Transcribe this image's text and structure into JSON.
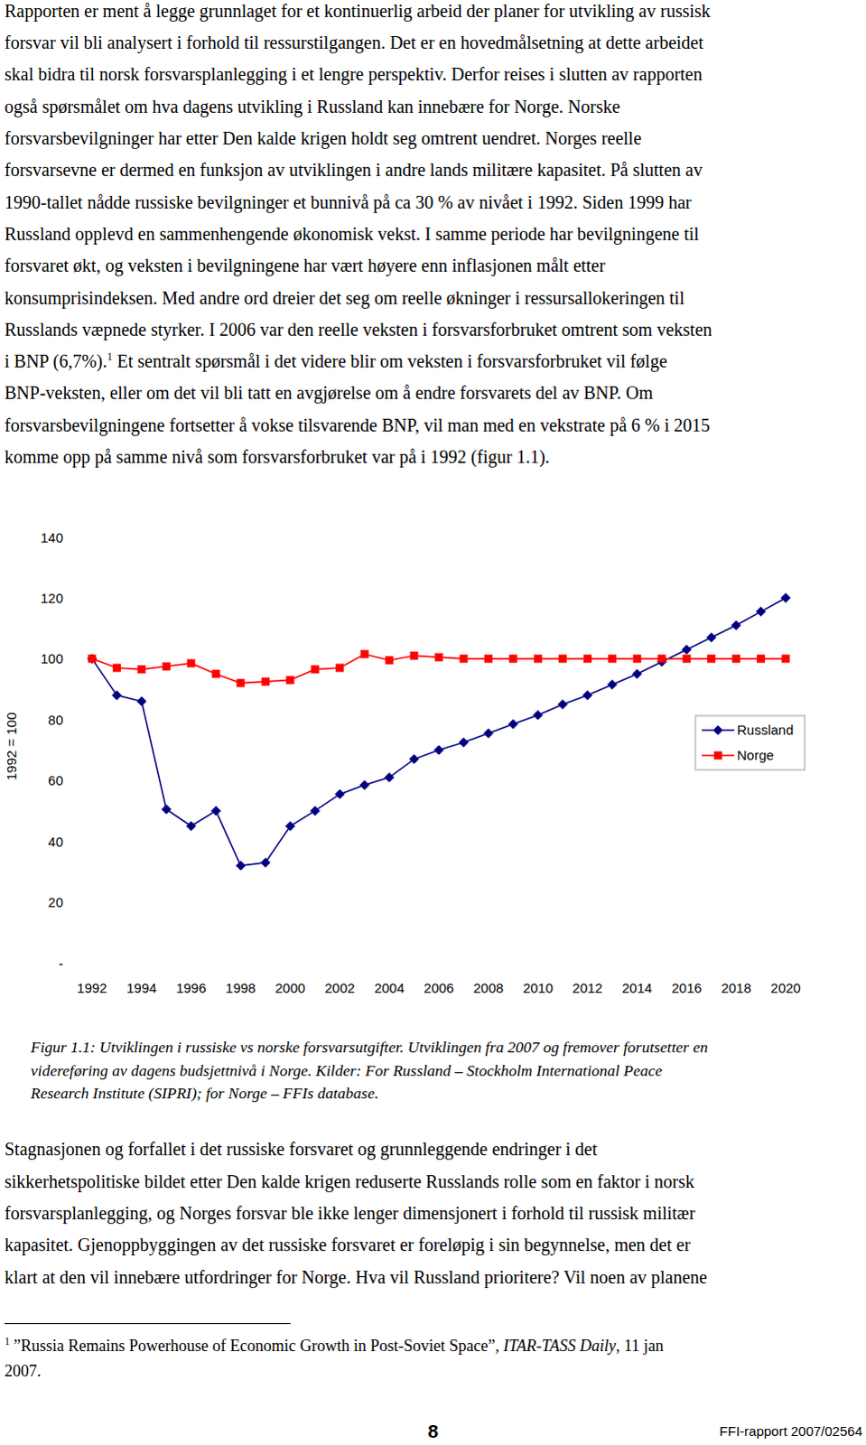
{
  "document": {
    "paragraphs": [
      {
        "lines": [
          "Rapporten er ment å legge grunnlaget for et kontinuerlig arbeid der planer for utvikling av russisk",
          "forsvar vil bli analysert i forhold til ressurstilgangen. Det er en hovedmålsetning at dette arbeidet",
          "skal bidra til norsk forsvarsplanlegging i et lengre perspektiv. Derfor reises i slutten av rapporten",
          "også spørsmålet om hva dagens utvikling i Russland kan innebære for Norge. Norske",
          "forsvarsbevilgninger har etter Den kalde krigen holdt seg omtrent uendret. Norges reelle",
          "forsvarsevne er dermed en funksjon av utviklingen i andre lands militære kapasitet. På slutten av",
          "1990-tallet nådde russiske bevilgninger et bunnivå på ca 30 % av nivået i 1992. Siden 1999 har",
          "Russland opplevd en sammenhengende økonomisk vekst. I samme periode har bevilgningene til",
          "forsvaret økt, og veksten i bevilgningene har vært høyere enn inflasjonen målt etter",
          "konsumprisindeksen. Med andre ord dreier det seg om reelle økninger i ressursallokeringen til",
          "Russlands væpnede styrker. I 2006 var den reelle veksten i forsvarsforbruket omtrent som veksten",
          {
            "text": "i BNP (6,7%).",
            "footnote_ref": "1",
            "text_after": " Et sentralt spørsmål i det videre blir om veksten i forsvarsforbruket vil følge"
          },
          "BNP-veksten, eller om det vil bli tatt en avgjørelse om å endre forsvarets del av BNP. Om",
          "forsvarsbevilgningene fortsetter å vokse tilsvarende BNP, vil man med en vekstrate på 6 % i 2015",
          "komme opp på samme nivå som forsvarsforbruket var på i 1992 (figur 1.1)."
        ]
      },
      {
        "lines": [
          "Stagnasjonen og forfallet i det russiske forsvaret og grunnleggende endringer i det",
          "sikkerhetspolitiske bildet etter Den kalde krigen reduserte Russlands rolle som en faktor i norsk",
          "forsvarsplanlegging, og Norges forsvar ble ikke lenger dimensjonert i forhold til russisk militær",
          "kapasitet. Gjenoppbyggingen av det russiske forsvaret er foreløpig i sin begynnelse, men det er",
          "klart at den vil innebære utfordringer for Norge. Hva vil Russland prioritere? Vil noen av planene"
        ]
      }
    ],
    "figure_caption": {
      "lines": [
        "Figur 1.1: Utviklingen i russiske vs norske forsvarsutgifter. Utviklingen fra 2007 og fremover forutsetter en",
        "videreføring av dagens budsjettnivå i Norge. Kilder: For Russland – Stockholm International Peace",
        "Research Institute (SIPRI); for Norge – FFIs database."
      ]
    },
    "footnote": {
      "marker": "1",
      "lines": [
        [
          "”Russia Remains Powerhouse of Economic Growth in Post-Soviet Space”, ",
          "ITAR-TASS Daily",
          ", 11 jan"
        ],
        [
          "2007."
        ]
      ]
    },
    "page_number": "8",
    "report_id": "FFI-rapport 2007/02564"
  },
  "chart_data": {
    "type": "line",
    "y_label": "1992 = 100",
    "x": [
      1992,
      1993,
      1994,
      1995,
      1996,
      1997,
      1998,
      1999,
      2000,
      2001,
      2002,
      2003,
      2004,
      2005,
      2006,
      2007,
      2008,
      2009,
      2010,
      2011,
      2012,
      2013,
      2014,
      2015,
      2016,
      2017,
      2018,
      2019,
      2020
    ],
    "series": [
      {
        "name": "Russland",
        "color": "#000080",
        "marker": "diamond",
        "values": [
          100,
          88,
          86,
          50.5,
          45,
          50,
          32,
          33,
          45,
          50,
          55.5,
          58.5,
          61,
          67,
          70,
          72.5,
          75.5,
          78.5,
          81.5,
          85,
          88,
          91.5,
          95,
          99,
          103,
          107,
          111,
          115.5,
          120
        ]
      },
      {
        "name": "Norge",
        "color": "#ff0000",
        "marker": "square",
        "values": [
          100,
          97,
          96.5,
          97.5,
          98.5,
          95,
          92,
          92.5,
          93,
          96.5,
          97,
          101.5,
          99.5,
          101,
          100.5,
          100,
          100,
          100,
          100,
          100,
          100,
          100,
          100,
          100,
          100,
          100,
          100,
          100,
          100
        ]
      }
    ],
    "xlim": [
      1992,
      2020
    ],
    "xticks": [
      1992,
      1994,
      1996,
      1998,
      2000,
      2002,
      2004,
      2006,
      2008,
      2010,
      2012,
      2014,
      2016,
      2018,
      2020
    ],
    "ylim": [
      0,
      140
    ],
    "yticks": [
      {
        "value": 0,
        "label": "-"
      },
      20,
      40,
      60,
      80,
      100,
      120,
      140
    ],
    "grid": false,
    "legend": "right"
  }
}
